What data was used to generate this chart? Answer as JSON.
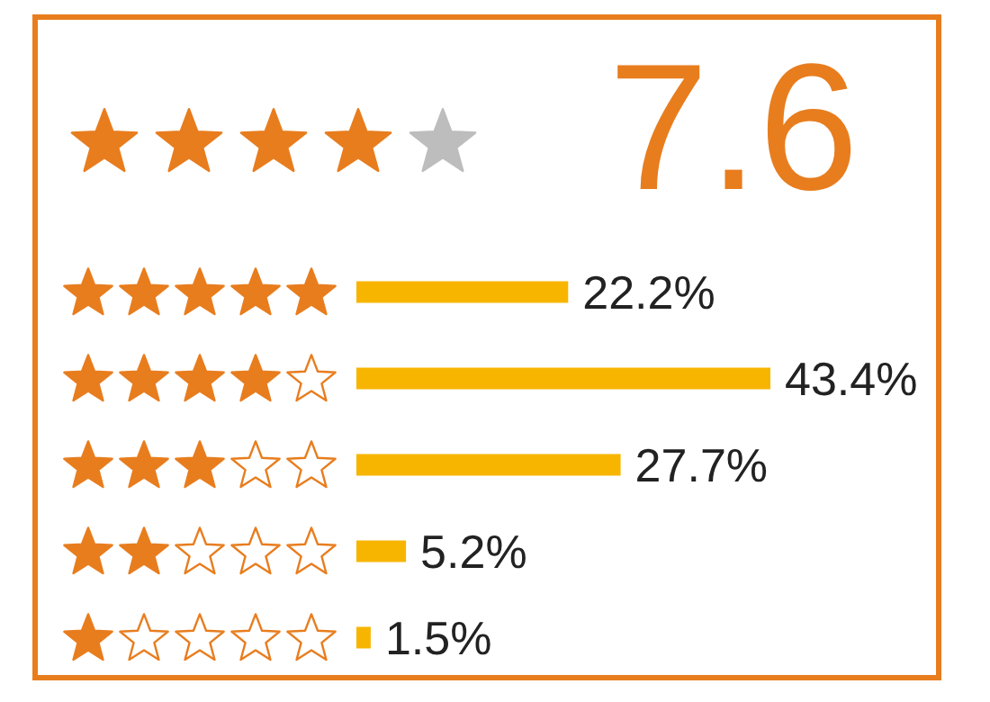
{
  "chart_data": {
    "type": "bar",
    "orientation": "horizontal",
    "title": "7.6",
    "categories": [
      null,
      null,
      null,
      null,
      null
    ],
    "values": [
      22.2,
      43.4,
      27.7,
      5.2,
      1.5
    ],
    "value_labels": [
      "22.2%",
      "43.4%",
      "27.7%",
      "5.2%",
      "1.5%"
    ],
    "color": "#f7b500",
    "tick_labels": false
  }
}
